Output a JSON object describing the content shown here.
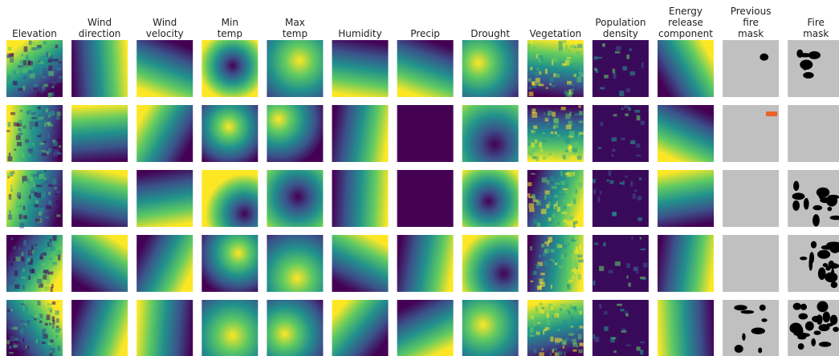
{
  "columns": [
    {
      "label": [
        "Elevation"
      ]
    },
    {
      "label": [
        "Wind",
        "direction"
      ]
    },
    {
      "label": [
        "Wind",
        "velocity"
      ]
    },
    {
      "label": [
        "Min",
        "temp"
      ]
    },
    {
      "label": [
        "Max",
        "temp"
      ]
    },
    {
      "label": [
        "Humidity"
      ]
    },
    {
      "label": [
        "Precip"
      ]
    },
    {
      "label": [
        "Drought"
      ]
    },
    {
      "label": [
        "Vegetation"
      ]
    },
    {
      "label": [
        "Population",
        "density"
      ]
    },
    {
      "label": [
        "Energy",
        "release",
        "component"
      ]
    },
    {
      "label": [
        "Previous",
        "fire",
        "mask"
      ]
    },
    {
      "label": [
        "Fire",
        "mask"
      ]
    }
  ]
}
